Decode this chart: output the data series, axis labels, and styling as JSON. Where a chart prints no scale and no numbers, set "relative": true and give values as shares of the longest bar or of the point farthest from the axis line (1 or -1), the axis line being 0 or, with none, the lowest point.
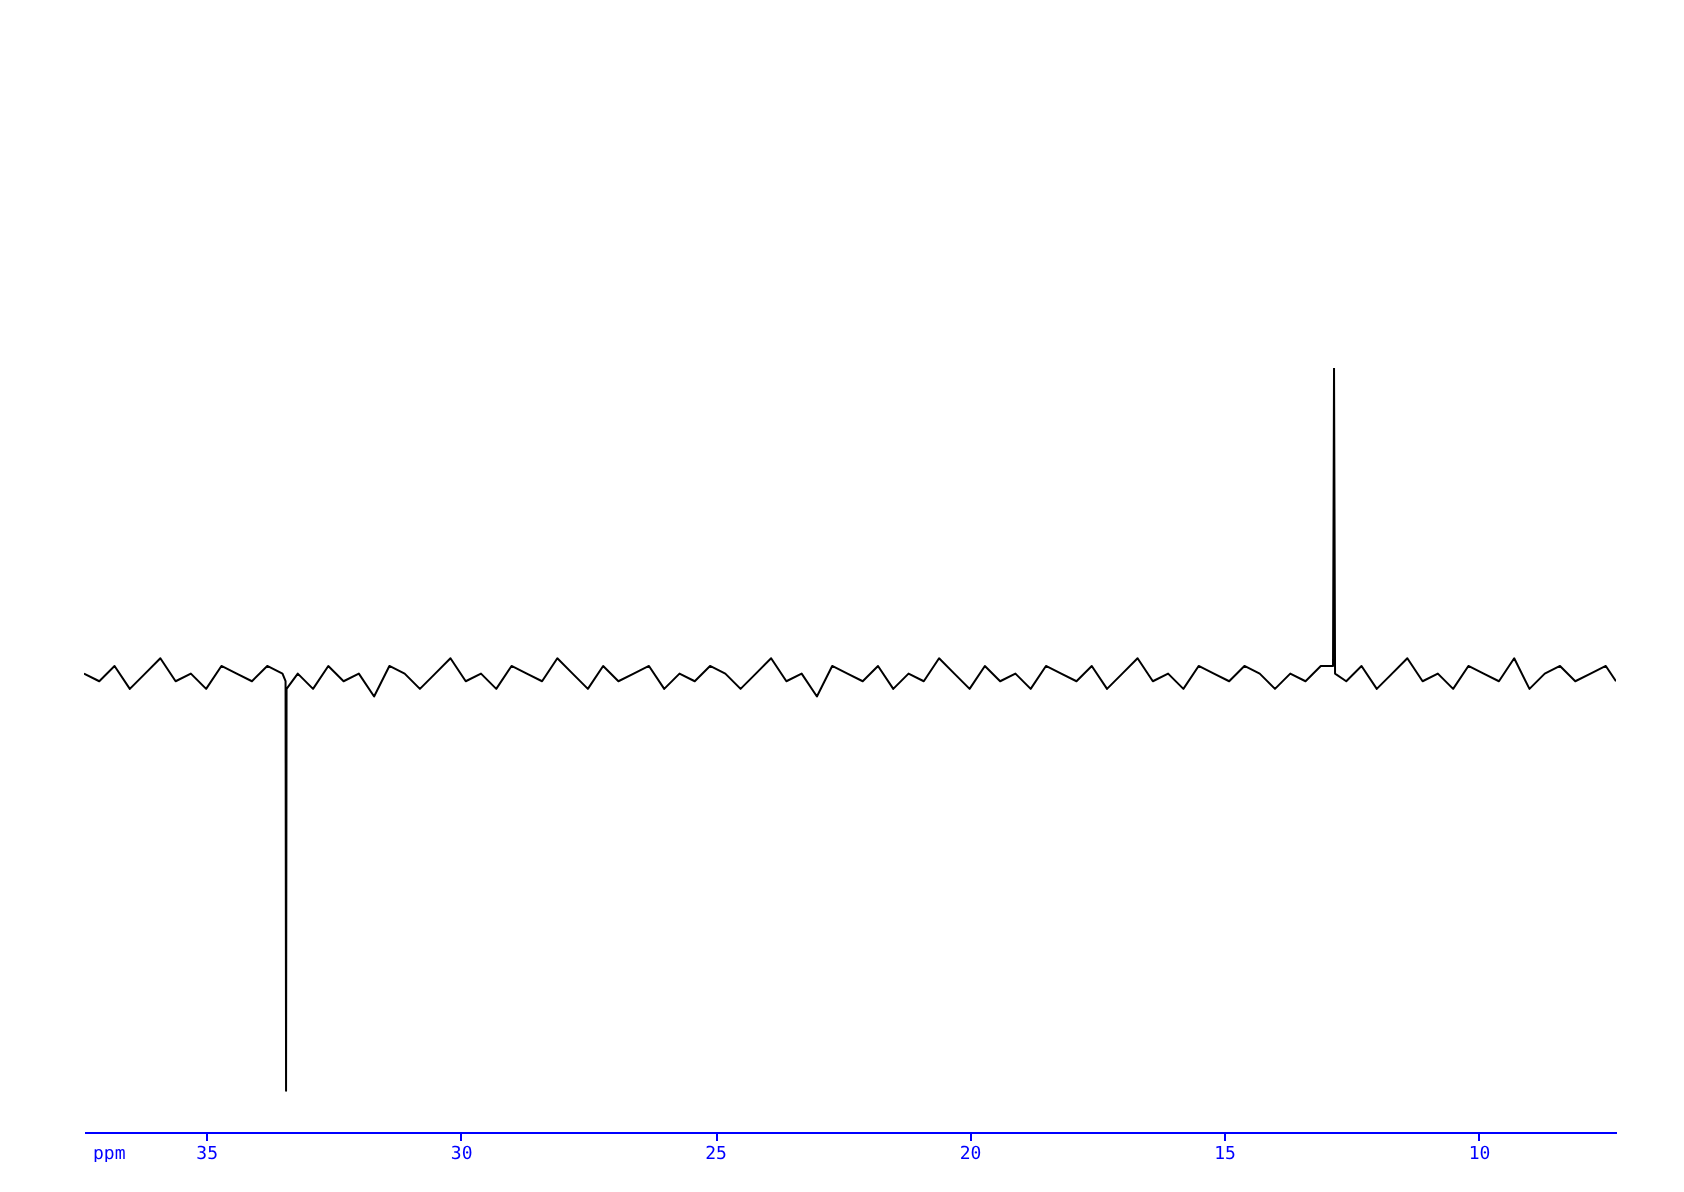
{
  "chart_data": {
    "type": "line",
    "relative": true,
    "xlabel": "ppm",
    "xlim": [
      37.4,
      7.3
    ],
    "xticks": [
      35,
      30,
      25,
      20,
      15,
      10
    ],
    "grid": false,
    "legend": false,
    "marker": "none",
    "line_style": "solid",
    "series": [
      {
        "color": "#000000",
        "x": [
          37.4,
          37.1,
          36.8,
          36.5,
          36.2,
          35.9,
          35.6,
          35.3,
          35.0,
          34.7,
          34.4,
          34.1,
          33.8,
          33.5,
          33.44,
          33.43,
          33.42,
          33.2,
          32.9,
          32.6,
          32.3,
          32.0,
          31.7,
          31.4,
          31.1,
          30.8,
          30.5,
          30.2,
          29.9,
          29.6,
          29.3,
          29.0,
          28.7,
          28.4,
          28.1,
          27.8,
          27.5,
          27.2,
          26.9,
          26.6,
          26.3,
          26.0,
          25.7,
          25.4,
          25.1,
          24.8,
          24.5,
          24.2,
          23.9,
          23.6,
          23.3,
          23.0,
          22.7,
          22.4,
          22.1,
          21.8,
          21.5,
          21.2,
          20.9,
          20.6,
          20.3,
          20.0,
          19.7,
          19.4,
          19.1,
          18.8,
          18.5,
          18.2,
          17.9,
          17.6,
          17.3,
          17.0,
          16.7,
          16.4,
          16.1,
          15.8,
          15.5,
          15.2,
          14.9,
          14.6,
          14.3,
          14.0,
          13.7,
          13.4,
          13.1,
          12.86,
          12.84,
          12.82,
          12.6,
          12.3,
          12.0,
          11.7,
          11.4,
          11.1,
          10.8,
          10.5,
          10.2,
          9.9,
          9.6,
          9.3,
          9.0,
          8.7,
          8.4,
          8.1,
          7.8,
          7.5,
          7.3
        ],
        "values": [
          0.6,
          0.59,
          0.61,
          0.58,
          0.6,
          0.62,
          0.59,
          0.6,
          0.58,
          0.61,
          0.6,
          0.59,
          0.61,
          0.6,
          0.59,
          0.054,
          0.58,
          0.6,
          0.58,
          0.61,
          0.59,
          0.6,
          0.57,
          0.61,
          0.6,
          0.58,
          0.6,
          0.62,
          0.59,
          0.6,
          0.58,
          0.61,
          0.6,
          0.59,
          0.62,
          0.6,
          0.58,
          0.61,
          0.59,
          0.6,
          0.61,
          0.58,
          0.6,
          0.59,
          0.61,
          0.6,
          0.58,
          0.6,
          0.62,
          0.59,
          0.6,
          0.57,
          0.61,
          0.6,
          0.59,
          0.61,
          0.58,
          0.6,
          0.59,
          0.62,
          0.6,
          0.58,
          0.61,
          0.59,
          0.6,
          0.58,
          0.61,
          0.6,
          0.59,
          0.61,
          0.58,
          0.6,
          0.62,
          0.59,
          0.6,
          0.58,
          0.61,
          0.6,
          0.59,
          0.61,
          0.6,
          0.58,
          0.6,
          0.59,
          0.61,
          0.61,
          1.0,
          0.6,
          0.59,
          0.61,
          0.58,
          0.6,
          0.62,
          0.59,
          0.6,
          0.58,
          0.61,
          0.6,
          0.59,
          0.62,
          0.58,
          0.6,
          0.61,
          0.59,
          0.6,
          0.61,
          0.59
        ]
      }
    ]
  }
}
